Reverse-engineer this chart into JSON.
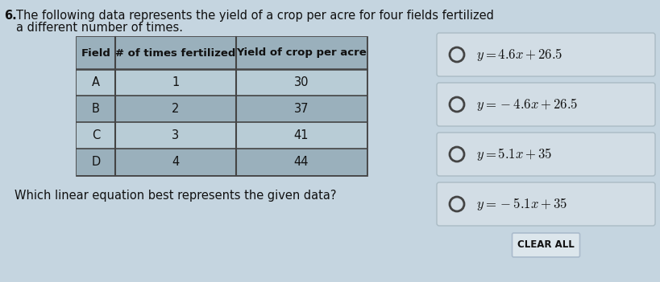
{
  "question_number": "6.",
  "question_text_line1": "The following data represents the yield of a crop per acre for four fields fertilized",
  "question_text_line2": "a different number of times.",
  "table_headers": [
    "Field",
    "# of times fertilized",
    "Yield of crop per acre"
  ],
  "table_rows": [
    [
      "A",
      "1",
      "30"
    ],
    [
      "B",
      "2",
      "37"
    ],
    [
      "C",
      "3",
      "41"
    ],
    [
      "D",
      "4",
      "44"
    ]
  ],
  "sub_question": "Which linear equation best represents the given data?",
  "options_display": [
    "$y = 4.6x + 26.5$",
    "$y = -4.6x + 26.5$",
    "$y = 5.1x + 35$",
    "$y = -5.1x + 35$"
  ],
  "clear_all_label": "CLEAR ALL",
  "bg_color": "#c5d5e0",
  "table_header_bg": "#9ab0bc",
  "table_row_light": "#b8ccd6",
  "table_row_dark": "#9ab0bc",
  "table_border_color": "#444444",
  "option_box_bg": "#d2dde5",
  "option_box_border": "#aabbc4",
  "text_color": "#111111",
  "clear_btn_bg": "#dce6ec",
  "clear_btn_border": "#aabbcc",
  "circle_color": "#444444"
}
